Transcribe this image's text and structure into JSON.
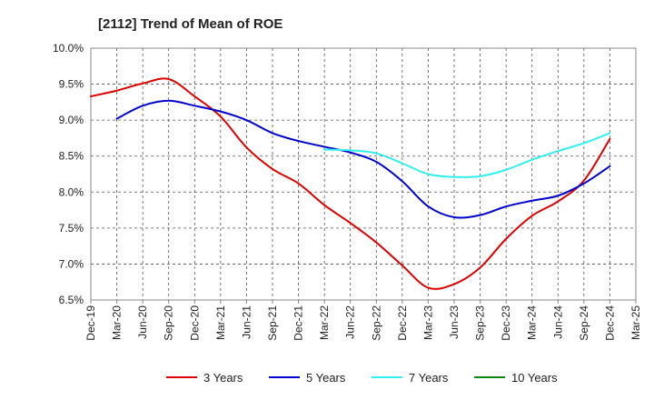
{
  "chart_data": {
    "type": "line",
    "title": "[2112]  Trend of Mean of ROE",
    "xlabel": "",
    "ylabel": "",
    "ylim": [
      6.5,
      10.0
    ],
    "y_ticks": [
      6.5,
      7.0,
      7.5,
      8.0,
      8.5,
      9.0,
      9.5,
      10.0
    ],
    "y_tick_labels": [
      "6.5%",
      "7.0%",
      "7.5%",
      "8.0%",
      "8.5%",
      "9.0%",
      "9.5%",
      "10.0%"
    ],
    "categories": [
      "Dec-19",
      "Mar-20",
      "Jun-20",
      "Sep-20",
      "Dec-20",
      "Mar-21",
      "Jun-21",
      "Sep-21",
      "Dec-21",
      "Mar-22",
      "Jun-22",
      "Sep-22",
      "Dec-22",
      "Mar-23",
      "Jun-23",
      "Sep-23",
      "Dec-23",
      "Mar-24",
      "Jun-24",
      "Sep-24",
      "Dec-24",
      "Mar-25"
    ],
    "grid": true,
    "legend_position": "bottom",
    "series": [
      {
        "name": "3 Years",
        "color": "#dd0000",
        "values": [
          9.33,
          9.41,
          9.51,
          9.57,
          9.33,
          9.05,
          8.62,
          8.32,
          8.12,
          7.82,
          7.57,
          7.3,
          6.98,
          6.67,
          6.72,
          6.95,
          7.35,
          7.67,
          7.87,
          8.16,
          8.74,
          null
        ]
      },
      {
        "name": "5 Years",
        "color": "#0000cc",
        "values": [
          null,
          9.02,
          9.2,
          9.27,
          9.2,
          9.12,
          9.0,
          8.82,
          8.71,
          8.63,
          8.55,
          8.42,
          8.15,
          7.8,
          7.65,
          7.68,
          7.8,
          7.88,
          7.95,
          8.12,
          8.36,
          null
        ]
      },
      {
        "name": "7 Years",
        "color": "#33eeee",
        "values": [
          null,
          null,
          null,
          null,
          null,
          null,
          null,
          null,
          null,
          8.59,
          8.58,
          8.54,
          8.4,
          8.25,
          8.21,
          8.22,
          8.31,
          8.45,
          8.57,
          8.68,
          8.82,
          null
        ]
      },
      {
        "name": "10 Years",
        "color": "#118811",
        "values": [
          null,
          null,
          null,
          null,
          null,
          null,
          null,
          null,
          null,
          null,
          null,
          null,
          null,
          null,
          null,
          null,
          null,
          null,
          null,
          null,
          null,
          null
        ]
      }
    ]
  }
}
